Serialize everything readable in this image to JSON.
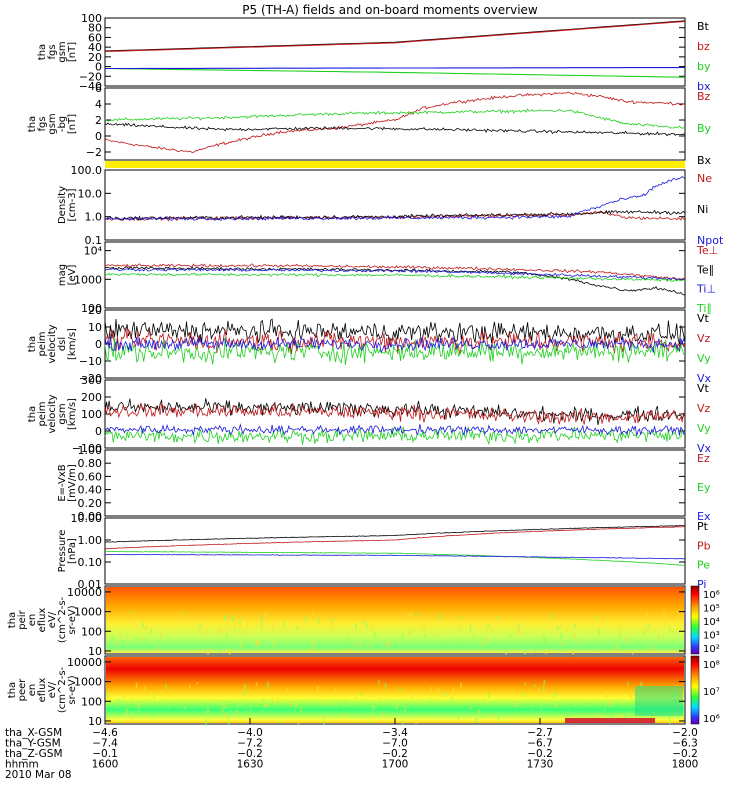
{
  "title": "P5 (TH-A) fields and on-board moments overview",
  "colors": {
    "black": "#000000",
    "red": "#c0181a",
    "green": "#20d020",
    "blue": "#1a1adc",
    "yellow": "#ffee00"
  },
  "chart_data": [
    {
      "type": "line",
      "ylabel": [
        "tha",
        "fgs",
        "gsm",
        "[nT]"
      ],
      "ylim": [
        -40,
        100
      ],
      "yticks": [
        -40,
        -20,
        0,
        20,
        40,
        60,
        80,
        100
      ],
      "ytick_labels": [
        "−40",
        "−20",
        "0",
        "20",
        "40",
        "60",
        "80",
        "100"
      ],
      "series": [
        {
          "name": "Bt",
          "color": "black",
          "x": [
            0,
            0.5,
            1
          ],
          "values": [
            32,
            50,
            94
          ]
        },
        {
          "name": "bz",
          "color": "red",
          "x": [
            0,
            0.5,
            1
          ],
          "values": [
            31,
            49,
            93
          ]
        },
        {
          "name": "by",
          "color": "green",
          "x": [
            0,
            0.5,
            1
          ],
          "values": [
            -4,
            -12,
            -22
          ]
        },
        {
          "name": "bx",
          "color": "blue",
          "x": [
            0,
            0.5,
            1
          ],
          "values": [
            -4,
            -3,
            -2
          ]
        }
      ]
    },
    {
      "type": "line",
      "ylabel": [
        "tha",
        "fgs",
        "gsm",
        "-bg",
        "[nT]"
      ],
      "ylim": [
        -3,
        6
      ],
      "yticks": [
        -2,
        0,
        2,
        4,
        6
      ],
      "ytick_labels": [
        "−2",
        "0",
        "2",
        "4",
        "6"
      ],
      "series": [
        {
          "name": "Bz",
          "color": "red",
          "x": [
            0,
            0.08,
            0.15,
            0.2,
            0.3,
            0.4,
            0.5,
            0.55,
            0.6,
            0.7,
            0.8,
            0.85,
            0.9,
            1
          ],
          "values": [
            -0.5,
            -1.4,
            -2.0,
            -1.0,
            0.5,
            1.0,
            2.0,
            3.5,
            4.2,
            5.0,
            5.4,
            5.0,
            4.3,
            4.0
          ]
        },
        {
          "name": "By",
          "color": "green",
          "x": [
            0,
            0.2,
            0.4,
            0.6,
            0.8,
            0.9,
            1
          ],
          "values": [
            2.0,
            2.3,
            2.8,
            3.0,
            3.2,
            1.5,
            1.0
          ]
        },
        {
          "name": "Bx",
          "color": "black",
          "x": [
            0,
            0.2,
            0.4,
            0.6,
            0.8,
            1
          ],
          "values": [
            1.5,
            0.8,
            1.0,
            0.8,
            0.5,
            0.2
          ]
        }
      ]
    },
    {
      "type": "line",
      "ylabel": [
        "Density",
        "[cm-3]"
      ],
      "yscale": "log",
      "ylim": [
        0.1,
        100
      ],
      "yticks": [
        0.1,
        1,
        10,
        100
      ],
      "ytick_labels": [
        "0.1",
        "1.0",
        "10.0",
        "100.0"
      ],
      "series": [
        {
          "name": "Ne",
          "color": "red",
          "x": [
            0,
            0.5,
            0.8,
            0.85,
            0.9,
            1
          ],
          "values": [
            0.8,
            0.95,
            1.2,
            1.5,
            0.9,
            0.8
          ]
        },
        {
          "name": "Ni",
          "color": "black",
          "x": [
            0,
            0.5,
            0.8,
            0.9,
            1
          ],
          "values": [
            0.85,
            1.0,
            1.3,
            1.6,
            1.5
          ]
        },
        {
          "name": "Npot",
          "color": "blue",
          "x": [
            0,
            0.6,
            0.8,
            0.85,
            0.93,
            1
          ],
          "values": [
            0.8,
            0.9,
            1.0,
            2.5,
            8,
            50
          ]
        }
      ]
    },
    {
      "type": "line",
      "ylabel": [
        "mag",
        "[eV]"
      ],
      "yscale": "log",
      "ylim": [
        100,
        20000
      ],
      "yticks": [
        100,
        1000,
        10000
      ],
      "ytick_labels": [
        "100",
        "1000",
        "10⁴"
      ],
      "series": [
        {
          "name": "Te⊥",
          "color": "red",
          "x": [
            0,
            0.3,
            0.6,
            0.85,
            0.95,
            1
          ],
          "values": [
            3000,
            3000,
            2500,
            1800,
            1200,
            1000
          ]
        },
        {
          "name": "Te∥",
          "color": "black",
          "x": [
            0,
            0.4,
            0.7,
            0.85,
            0.9,
            0.95,
            1
          ],
          "values": [
            2500,
            2200,
            1800,
            600,
            400,
            500,
            300
          ]
        },
        {
          "name": "Ti⊥",
          "color": "blue",
          "x": [
            0,
            0.5,
            1
          ],
          "values": [
            2200,
            2000,
            1000
          ]
        },
        {
          "name": "Ti∥",
          "color": "green",
          "x": [
            0,
            0.5,
            1
          ],
          "values": [
            1500,
            1400,
            900
          ]
        }
      ]
    },
    {
      "type": "line",
      "ylabel": [
        "tha",
        "peim",
        "velocity",
        "dsl",
        "[km/s]"
      ],
      "ylim": [
        -20,
        20
      ],
      "yticks": [
        -20,
        -10,
        0,
        10,
        20
      ],
      "ytick_labels": [
        "−20",
        "−10",
        "0",
        "10",
        "20"
      ],
      "series": [
        {
          "name": "Vt",
          "color": "black",
          "x": [
            0,
            1
          ],
          "values": [
            8,
            6
          ]
        },
        {
          "name": "Vz",
          "color": "red",
          "x": [
            0,
            1
          ],
          "values": [
            2,
            1
          ]
        },
        {
          "name": "Vy",
          "color": "green",
          "x": [
            0,
            1
          ],
          "values": [
            -5,
            -4
          ]
        },
        {
          "name": "Vx",
          "color": "blue",
          "x": [
            0,
            1
          ],
          "values": [
            0,
            0
          ]
        }
      ]
    },
    {
      "type": "line",
      "ylabel": [
        "tha",
        "peim",
        "velocity",
        "gsm",
        "[km/s]"
      ],
      "ylim": [
        -100,
        300
      ],
      "yticks": [
        -100,
        0,
        100,
        200,
        300
      ],
      "ytick_labels": [
        "−100",
        "0",
        "100",
        "200",
        "300"
      ],
      "series": [
        {
          "name": "Vt",
          "color": "black",
          "x": [
            0,
            0.5,
            0.8,
            1
          ],
          "values": [
            140,
            130,
            90,
            100
          ]
        },
        {
          "name": "Vz",
          "color": "red",
          "x": [
            0,
            0.5,
            0.8,
            1
          ],
          "values": [
            120,
            110,
            80,
            90
          ]
        },
        {
          "name": "Vy",
          "color": "green",
          "x": [
            0,
            1
          ],
          "values": [
            -30,
            -25
          ]
        },
        {
          "name": "Vx",
          "color": "blue",
          "x": [
            0,
            1
          ],
          "values": [
            10,
            5
          ]
        }
      ]
    },
    {
      "type": "line",
      "ylabel": [
        "E=-VxB",
        "[mV/m]"
      ],
      "ylim": [
        0,
        1
      ],
      "yticks": [
        0,
        0.2,
        0.4,
        0.6,
        0.8,
        1.0
      ],
      "ytick_labels": [
        "0.00",
        "0.20",
        "0.40",
        "0.60",
        "0.80",
        "1.00"
      ],
      "series": [
        {
          "name": "Ez",
          "color": "red",
          "x": [],
          "values": []
        },
        {
          "name": "Ey",
          "color": "green",
          "x": [],
          "values": []
        },
        {
          "name": "Ex",
          "color": "blue",
          "x": [],
          "values": []
        }
      ]
    },
    {
      "type": "line",
      "ylabel": [
        "Pressure",
        "[nPa]"
      ],
      "yscale": "log",
      "ylim": [
        0.01,
        10
      ],
      "yticks": [
        0.01,
        0.1,
        1,
        10
      ],
      "ytick_labels": [
        "0.01",
        "0.10",
        "1.00",
        "10.00"
      ],
      "series": [
        {
          "name": "Pt",
          "color": "black",
          "x": [
            0,
            0.5,
            1
          ],
          "values": [
            0.8,
            1.6,
            4.5
          ]
        },
        {
          "name": "Pb",
          "color": "red",
          "x": [
            0,
            0.5,
            1
          ],
          "values": [
            0.4,
            1.0,
            4.0
          ]
        },
        {
          "name": "Pe",
          "color": "green",
          "x": [
            0,
            0.5,
            0.85,
            1
          ],
          "values": [
            0.3,
            0.25,
            0.12,
            0.07
          ]
        },
        {
          "name": "Pi",
          "color": "blue",
          "x": [
            0,
            0.5,
            1
          ],
          "values": [
            0.22,
            0.2,
            0.14
          ]
        }
      ]
    },
    {
      "type": "heatmap",
      "ylabel": [
        "tha",
        "peir",
        "en",
        "eflux",
        "eV/",
        "(cm^2-s-",
        "sr-eV)"
      ],
      "yscale": "log",
      "ylim": [
        7,
        20000
      ],
      "yticks": [
        10,
        100,
        1000,
        10000
      ],
      "ytick_labels": [
        "10",
        "100",
        "1000",
        "10000"
      ],
      "colorbar_ticks": [
        "10⁶",
        "10⁵",
        "10⁴",
        "10³",
        "10²"
      ]
    },
    {
      "type": "heatmap",
      "ylabel": [
        "tha",
        "peer",
        "en",
        "eflux",
        "eV/",
        "(cm^2-s-",
        "sr-eV)"
      ],
      "yscale": "log",
      "ylim": [
        7,
        20000
      ],
      "yticks": [
        10,
        100,
        1000,
        10000
      ],
      "ytick_labels": [
        "10",
        "100",
        "1000",
        "10000"
      ],
      "colorbar_ticks": [
        "10⁸",
        "10⁷",
        "10⁶"
      ]
    }
  ],
  "x_axis": {
    "row_labels": [
      "tha_X-GSM",
      "tha_Y-GSM",
      "tha_Z-GSM",
      "hhmm",
      "2010 Mar 08"
    ],
    "ticks": [
      {
        "x": 0.0,
        "values": [
          "−4.6",
          "−7.4",
          "−0.1",
          "1600"
        ]
      },
      {
        "x": 0.25,
        "values": [
          "−4.0",
          "−7.2",
          "−0.2",
          "1630"
        ]
      },
      {
        "x": 0.5,
        "values": [
          "−3.4",
          "−7.0",
          "−0.2",
          "1700"
        ]
      },
      {
        "x": 0.75,
        "values": [
          "−2.7",
          "−6.7",
          "−0.2",
          "1730"
        ]
      },
      {
        "x": 1.0,
        "values": [
          "−2.0",
          "−6.3",
          "−0.2",
          "1800"
        ]
      }
    ]
  }
}
